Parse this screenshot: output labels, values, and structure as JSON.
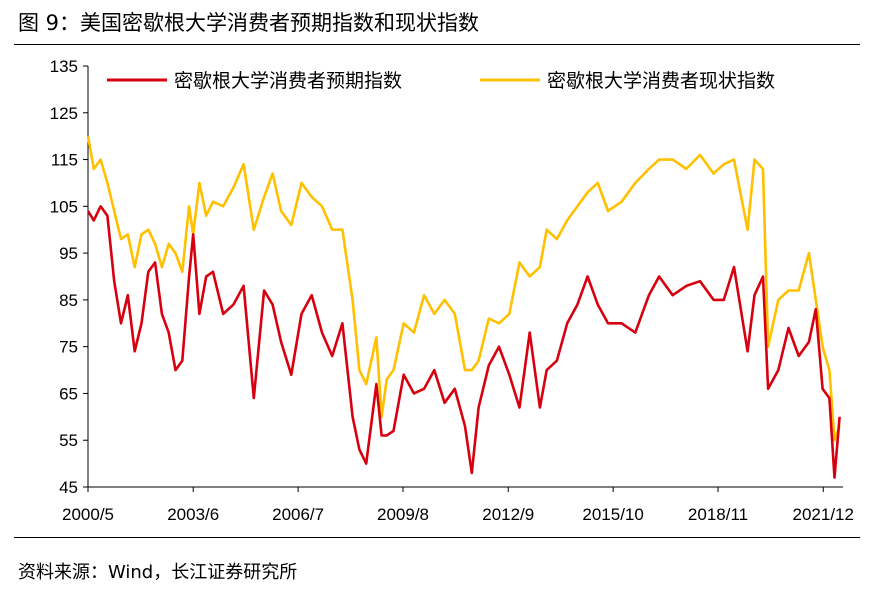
{
  "figure": {
    "label": "图 9：",
    "title": "美国密歇根大学消费者预期指数和现状指数",
    "source": "资料来源：Wind，长江证券研究所"
  },
  "colors": {
    "expectations": "#d7000f",
    "current": "#ffc000",
    "axis": "#000000"
  },
  "chart_data": {
    "type": "line",
    "title": "美国密歇根大学消费者预期指数和现状指数",
    "xlabel": "",
    "ylabel": "",
    "ylim": [
      45,
      135
    ],
    "yticks": [
      45,
      55,
      65,
      75,
      85,
      95,
      105,
      115,
      125,
      135
    ],
    "x_tick_labels": [
      "2000/5",
      "2003/6",
      "2006/7",
      "2009/8",
      "2012/9",
      "2015/10",
      "2018/11",
      "2021/12"
    ],
    "x_tick_positions": [
      2000.33,
      2003.42,
      2006.5,
      2009.58,
      2012.67,
      2015.75,
      2018.83,
      2021.92
    ],
    "x_range": [
      2000.33,
      2022.5
    ],
    "legend_position": "top",
    "series": [
      {
        "name": "密歇根大学消费者预期指数",
        "color": "#d7000f",
        "x": [
          2000.33,
          2000.5,
          2000.7,
          2000.9,
          2001.1,
          2001.3,
          2001.5,
          2001.7,
          2001.9,
          2002.1,
          2002.3,
          2002.5,
          2002.7,
          2002.9,
          2003.1,
          2003.3,
          2003.42,
          2003.6,
          2003.8,
          2004.0,
          2004.3,
          2004.6,
          2004.9,
          2005.2,
          2005.5,
          2005.75,
          2006.0,
          2006.3,
          2006.6,
          2006.9,
          2007.2,
          2007.5,
          2007.8,
          2008.1,
          2008.3,
          2008.5,
          2008.8,
          2008.95,
          2009.1,
          2009.3,
          2009.6,
          2009.9,
          2010.2,
          2010.5,
          2010.8,
          2011.1,
          2011.4,
          2011.6,
          2011.8,
          2012.1,
          2012.4,
          2012.7,
          2013.0,
          2013.3,
          2013.6,
          2013.8,
          2014.1,
          2014.4,
          2014.7,
          2015.0,
          2015.3,
          2015.6,
          2016.0,
          2016.4,
          2016.8,
          2017.1,
          2017.5,
          2017.9,
          2018.3,
          2018.7,
          2019.0,
          2019.3,
          2019.7,
          2019.9,
          2020.15,
          2020.3,
          2020.6,
          2020.9,
          2021.2,
          2021.5,
          2021.7,
          2021.9,
          2022.1,
          2022.25,
          2022.4
        ],
        "values": [
          104,
          102,
          105,
          103,
          89,
          80,
          86,
          74,
          80,
          91,
          93,
          82,
          78,
          70,
          72,
          90,
          99,
          82,
          90,
          91,
          82,
          84,
          88,
          64,
          87,
          84,
          76,
          69,
          82,
          86,
          78,
          73,
          80,
          60,
          53,
          50,
          67,
          56,
          56,
          57,
          69,
          65,
          66,
          70,
          63,
          66,
          58,
          48,
          62,
          71,
          75,
          69,
          62,
          78,
          62,
          70,
          72,
          80,
          84,
          90,
          84,
          80,
          80,
          78,
          86,
          90,
          86,
          88,
          89,
          85,
          85,
          92,
          74,
          86,
          90,
          66,
          70,
          79,
          73,
          76,
          83,
          66,
          64,
          47,
          60
        ]
      },
      {
        "name": "密歇根大学消费者现状指数",
        "color": "#ffc000",
        "x": [
          2000.33,
          2000.5,
          2000.7,
          2000.9,
          2001.1,
          2001.3,
          2001.5,
          2001.7,
          2001.9,
          2002.1,
          2002.3,
          2002.5,
          2002.7,
          2002.9,
          2003.1,
          2003.3,
          2003.42,
          2003.6,
          2003.8,
          2004.0,
          2004.3,
          2004.6,
          2004.9,
          2005.2,
          2005.5,
          2005.75,
          2006.0,
          2006.3,
          2006.6,
          2006.9,
          2007.2,
          2007.5,
          2007.8,
          2008.1,
          2008.3,
          2008.5,
          2008.8,
          2008.95,
          2009.1,
          2009.3,
          2009.6,
          2009.9,
          2010.2,
          2010.5,
          2010.8,
          2011.1,
          2011.4,
          2011.6,
          2011.8,
          2012.1,
          2012.4,
          2012.7,
          2013.0,
          2013.3,
          2013.6,
          2013.8,
          2014.1,
          2014.4,
          2014.7,
          2015.0,
          2015.3,
          2015.6,
          2016.0,
          2016.4,
          2016.8,
          2017.1,
          2017.5,
          2017.9,
          2018.3,
          2018.7,
          2019.0,
          2019.3,
          2019.7,
          2019.9,
          2020.15,
          2020.3,
          2020.6,
          2020.9,
          2021.2,
          2021.5,
          2021.7,
          2021.9,
          2022.1,
          2022.25,
          2022.4
        ],
        "values": [
          120,
          113,
          115,
          110,
          104,
          98,
          99,
          92,
          99,
          100,
          97,
          92,
          97,
          95,
          91,
          105,
          99,
          110,
          103,
          106,
          105,
          109,
          114,
          100,
          107,
          112,
          104,
          101,
          110,
          107,
          105,
          100,
          100,
          85,
          70,
          67,
          77,
          60,
          68,
          70,
          80,
          78,
          86,
          82,
          85,
          82,
          70,
          70,
          72,
          81,
          80,
          82,
          93,
          90,
          92,
          100,
          98,
          102,
          105,
          108,
          110,
          104,
          106,
          110,
          113,
          115,
          115,
          113,
          116,
          112,
          114,
          115,
          100,
          115,
          113,
          75,
          85,
          87,
          87,
          95,
          85,
          75,
          70,
          55,
          58
        ]
      }
    ]
  }
}
